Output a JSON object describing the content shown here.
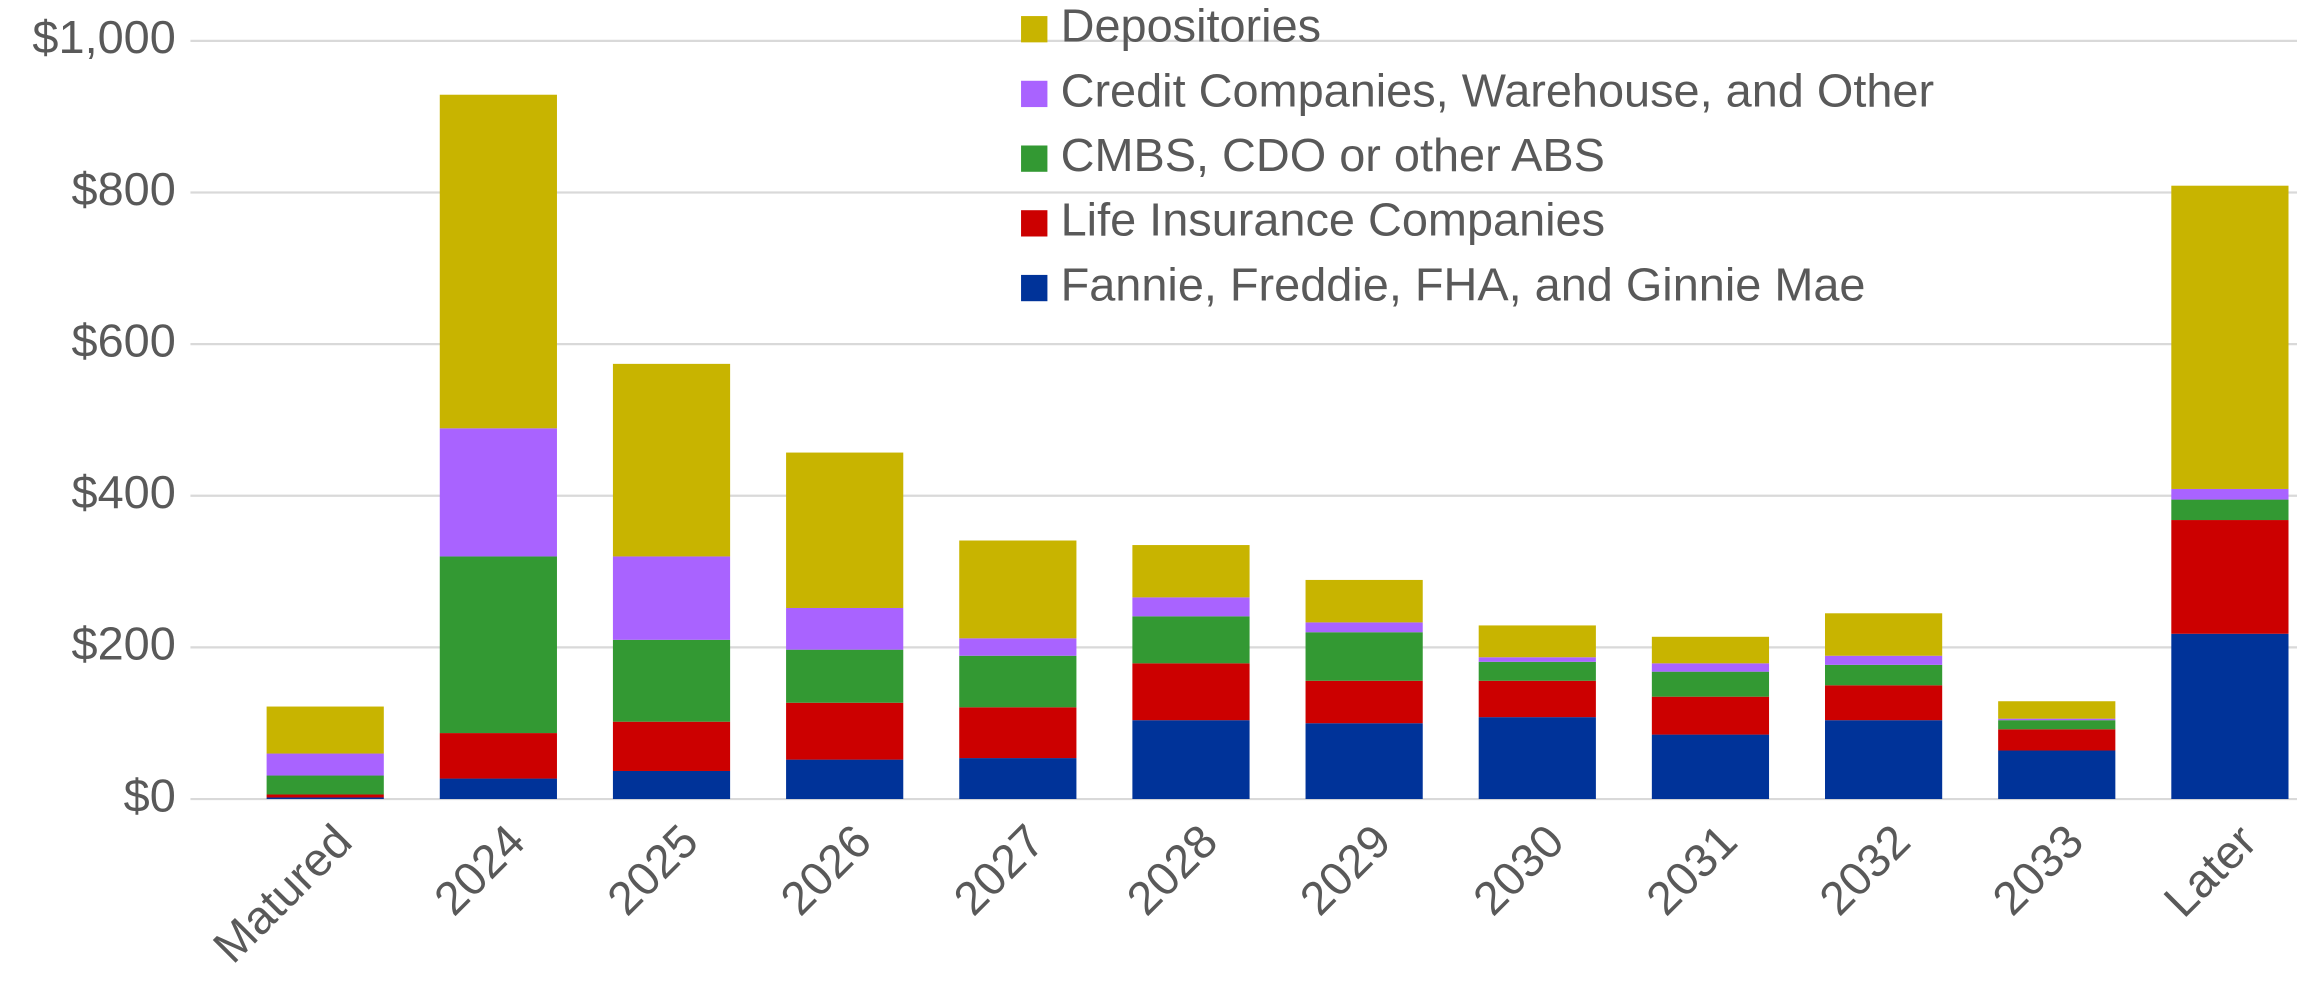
{
  "chart_data": {
    "type": "stacked_bar",
    "categories": [
      "Matured",
      "2024",
      "2025",
      "2026",
      "2027",
      "2028",
      "2029",
      "2030",
      "2031",
      "2032",
      "2033",
      "Later"
    ],
    "series": [
      {
        "name": "Fannie, Freddie, FHA, and Ginnie Mae",
        "color": "#003399",
        "values": [
          2,
          27,
          37,
          52,
          54,
          104,
          100,
          108,
          85,
          104,
          64,
          218
        ]
      },
      {
        "name": "Life Insurance Companies",
        "color": "#cc0000",
        "values": [
          4,
          60,
          65,
          75,
          67,
          75,
          56,
          48,
          50,
          46,
          28,
          150
        ]
      },
      {
        "name": "CMBS, CDO or other ABS",
        "color": "#339933",
        "values": [
          25,
          233,
          108,
          70,
          68,
          62,
          64,
          25,
          33,
          27,
          12,
          27
        ]
      },
      {
        "name": "Credit Companies, Warehouse, and Other",
        "color": "#a963ff",
        "values": [
          29,
          169,
          110,
          55,
          23,
          25,
          13,
          6,
          11,
          12,
          2,
          14
        ]
      },
      {
        "name": "Depositories",
        "color": "#c8b400",
        "values": [
          62,
          440,
          254,
          205,
          129,
          69,
          56,
          42,
          35,
          56,
          23,
          400
        ]
      }
    ],
    "ylim": [
      0,
      1000
    ],
    "yticks": [
      {
        "value": 0,
        "label": "$0"
      },
      {
        "value": 200,
        "label": "$200"
      },
      {
        "value": 400,
        "label": "$400"
      },
      {
        "value": 600,
        "label": "$600"
      },
      {
        "value": 800,
        "label": "$800"
      },
      {
        "value": 1000,
        "label": "$1,000"
      }
    ],
    "grid": true,
    "legend": "top"
  }
}
